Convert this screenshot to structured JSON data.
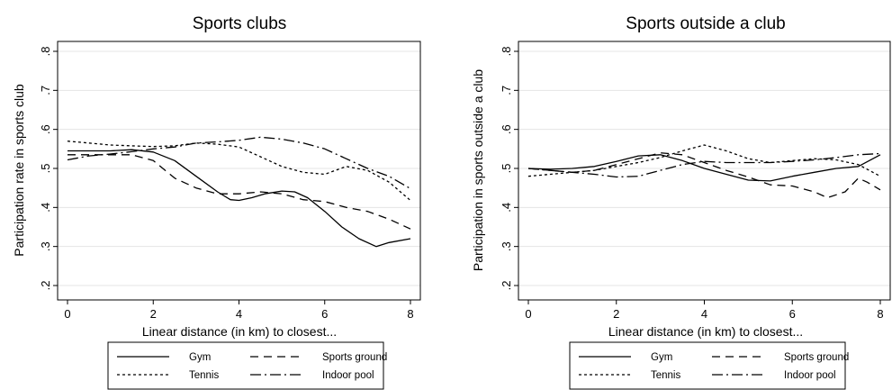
{
  "chart_data": [
    {
      "type": "line",
      "title": "Sports clubs",
      "xlabel": "Linear distance (in km) to closest...",
      "ylabel": "Participation rate in sports club",
      "xlim": [
        0,
        8
      ],
      "ylim": [
        0.2,
        0.8
      ],
      "x_ticks": [
        "0",
        "2",
        "4",
        "6",
        "8"
      ],
      "y_ticks": [
        ".2",
        ".3",
        ".4",
        ".5",
        ".6",
        ".7",
        ".8"
      ],
      "grid": "horizontal",
      "legend_position": "bottom",
      "series": [
        {
          "name": "Gym",
          "style": "solid",
          "x": [
            0,
            0.5,
            1,
            1.5,
            2,
            2.5,
            3,
            3.5,
            3.8,
            4,
            4.3,
            4.6,
            5,
            5.3,
            5.6,
            6,
            6.4,
            6.8,
            7.2,
            7.5,
            8
          ],
          "y": [
            0.545,
            0.545,
            0.545,
            0.548,
            0.542,
            0.52,
            0.48,
            0.44,
            0.42,
            0.418,
            0.425,
            0.435,
            0.442,
            0.44,
            0.425,
            0.39,
            0.35,
            0.32,
            0.3,
            0.31,
            0.32
          ]
        },
        {
          "name": "Sports ground",
          "style": "dash",
          "x": [
            0,
            0.5,
            1,
            1.5,
            2,
            2.5,
            3,
            3.5,
            4,
            4.5,
            5,
            5.5,
            6,
            6.5,
            7,
            7.5,
            8
          ],
          "y": [
            0.535,
            0.535,
            0.535,
            0.535,
            0.52,
            0.475,
            0.45,
            0.435,
            0.435,
            0.44,
            0.435,
            0.42,
            0.415,
            0.4,
            0.39,
            0.37,
            0.345
          ]
        },
        {
          "name": "Tennis",
          "style": "dot",
          "x": [
            0,
            0.5,
            1,
            1.5,
            2,
            2.5,
            3,
            3.5,
            4,
            4.5,
            5,
            5.5,
            6,
            6.5,
            7,
            7.5,
            8
          ],
          "y": [
            0.57,
            0.565,
            0.56,
            0.558,
            0.556,
            0.558,
            0.565,
            0.562,
            0.555,
            0.53,
            0.505,
            0.49,
            0.485,
            0.505,
            0.495,
            0.465,
            0.418
          ]
        },
        {
          "name": "Indoor pool",
          "style": "dashdot",
          "x": [
            0,
            0.5,
            1,
            1.5,
            2,
            2.5,
            3,
            3.5,
            4,
            4.5,
            5,
            5.5,
            6,
            6.5,
            7,
            7.5,
            8
          ],
          "y": [
            0.522,
            0.532,
            0.537,
            0.543,
            0.55,
            0.555,
            0.565,
            0.568,
            0.572,
            0.58,
            0.575,
            0.565,
            0.55,
            0.525,
            0.5,
            0.48,
            0.448
          ]
        }
      ]
    },
    {
      "type": "line",
      "title": "Sports outside a club",
      "xlabel": "Linear distance (in km) to closest...",
      "ylabel": "Participation in sports outside a club",
      "xlim": [
        0,
        8
      ],
      "ylim": [
        0.2,
        0.8
      ],
      "x_ticks": [
        "0",
        "2",
        "4",
        "6",
        "8"
      ],
      "y_ticks": [
        ".2",
        ".3",
        ".4",
        ".5",
        ".6",
        ".7",
        ".8"
      ],
      "grid": "horizontal",
      "legend_position": "bottom",
      "series": [
        {
          "name": "Gym",
          "style": "solid",
          "x": [
            0,
            0.5,
            1,
            1.5,
            2,
            2.5,
            3,
            3.5,
            4,
            4.5,
            5,
            5.5,
            6,
            6.5,
            7,
            7.5,
            8
          ],
          "y": [
            0.5,
            0.498,
            0.5,
            0.505,
            0.518,
            0.532,
            0.535,
            0.52,
            0.5,
            0.485,
            0.47,
            0.468,
            0.48,
            0.49,
            0.5,
            0.505,
            0.535
          ]
        },
        {
          "name": "Sports ground",
          "style": "dash",
          "x": [
            0,
            0.5,
            1,
            1.5,
            2,
            2.5,
            3,
            3.5,
            4,
            4.5,
            5,
            5.5,
            6,
            6.5,
            6.8,
            7.2,
            7.5,
            7.7,
            8
          ],
          "y": [
            0.5,
            0.495,
            0.49,
            0.495,
            0.51,
            0.525,
            0.54,
            0.535,
            0.515,
            0.495,
            0.478,
            0.458,
            0.455,
            0.44,
            0.425,
            0.44,
            0.475,
            0.465,
            0.445
          ]
        },
        {
          "name": "Tennis",
          "style": "dot",
          "x": [
            0,
            0.5,
            1,
            1.5,
            2,
            2.5,
            3,
            3.5,
            4,
            4.5,
            5,
            5.5,
            6,
            6.5,
            7,
            7.5,
            8
          ],
          "y": [
            0.48,
            0.485,
            0.49,
            0.495,
            0.505,
            0.515,
            0.528,
            0.545,
            0.56,
            0.545,
            0.525,
            0.515,
            0.52,
            0.525,
            0.522,
            0.51,
            0.48
          ]
        },
        {
          "name": "Indoor pool",
          "style": "dashdot",
          "x": [
            0,
            0.5,
            1,
            1.5,
            2,
            2.5,
            3,
            3.5,
            4,
            4.5,
            5,
            5.5,
            6,
            6.5,
            7,
            7.5,
            8
          ],
          "y": [
            0.5,
            0.495,
            0.49,
            0.485,
            0.478,
            0.48,
            0.495,
            0.51,
            0.518,
            0.515,
            0.515,
            0.515,
            0.518,
            0.522,
            0.528,
            0.535,
            0.538
          ]
        }
      ]
    }
  ]
}
